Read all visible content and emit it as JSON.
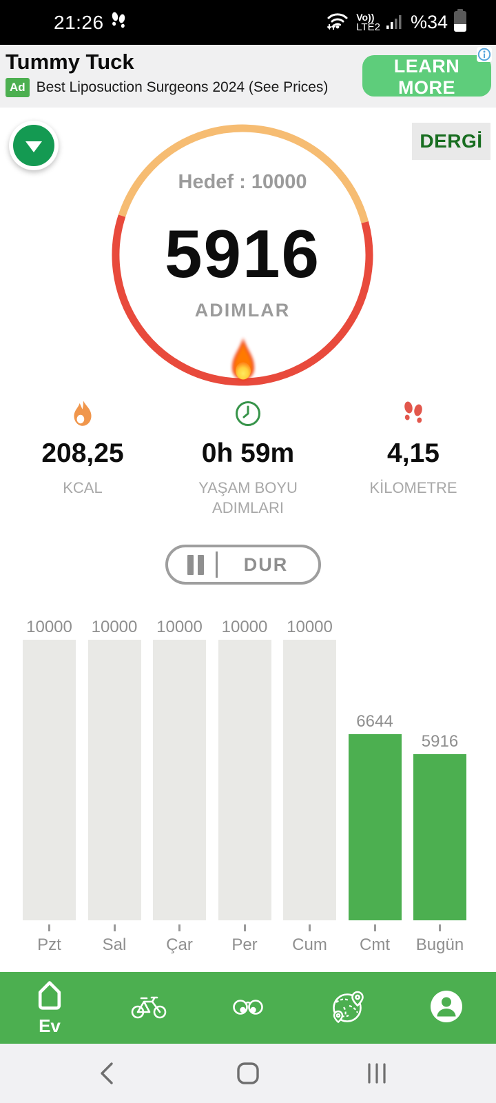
{
  "status_bar": {
    "time": "21:26",
    "network_top": "Vo))",
    "network_bottom": "LTE2",
    "battery_percent": "%34"
  },
  "ad_banner": {
    "title": "Tummy Tuck",
    "badge": "Ad",
    "description": "Best Liposuction Surgeons 2024 (See Prices)",
    "cta": "LEARN MORE"
  },
  "header": {
    "magazine_label": "DERGİ"
  },
  "progress": {
    "goal_label": "Hedef : 10000",
    "steps": "5916",
    "steps_label": "ADIMLAR"
  },
  "stats": {
    "items": [
      {
        "icon": "flame-icon",
        "value": "208,25",
        "label": "KCAL"
      },
      {
        "icon": "clock-icon",
        "value": "0h 59m",
        "label": "YAŞAM BOYU ADIMLARI"
      },
      {
        "icon": "footsteps-icon",
        "value": "4,15",
        "label": "KİLOMETRE"
      }
    ]
  },
  "pause_button": {
    "label": "DUR"
  },
  "chart_data": {
    "type": "bar",
    "title": "",
    "categories": [
      "Pzt",
      "Sal",
      "Çar",
      "Per",
      "Cum",
      "Cmt",
      "Bugün"
    ],
    "values": [
      10000,
      10000,
      10000,
      10000,
      10000,
      6644,
      5916
    ],
    "value_labels": [
      "10000",
      "10000",
      "10000",
      "10000",
      "10000",
      "6644",
      "5916"
    ],
    "bar_colors": [
      "#e9e9e6",
      "#e9e9e6",
      "#e9e9e6",
      "#e9e9e6",
      "#e9e9e6",
      "#4caf50",
      "#4caf50"
    ],
    "ylim": [
      0,
      10000
    ],
    "goal": 10000,
    "grid": false,
    "legend": false
  },
  "bottom_nav": {
    "items": [
      {
        "icon": "home-icon",
        "label": "Ev"
      },
      {
        "icon": "bicycle-icon",
        "label": ""
      },
      {
        "icon": "binoculars-icon",
        "label": ""
      },
      {
        "icon": "globe-icon",
        "label": ""
      },
      {
        "icon": "profile-icon",
        "label": ""
      }
    ]
  },
  "colors": {
    "accent_green": "#4caf50",
    "cta_green": "#5ecd7b",
    "fab_green": "#149a52",
    "ring_orange": "#f6bc72",
    "ring_red": "#e84a3c",
    "gray_text": "#9b9b9b",
    "bar_gray": "#e9e9e6"
  }
}
